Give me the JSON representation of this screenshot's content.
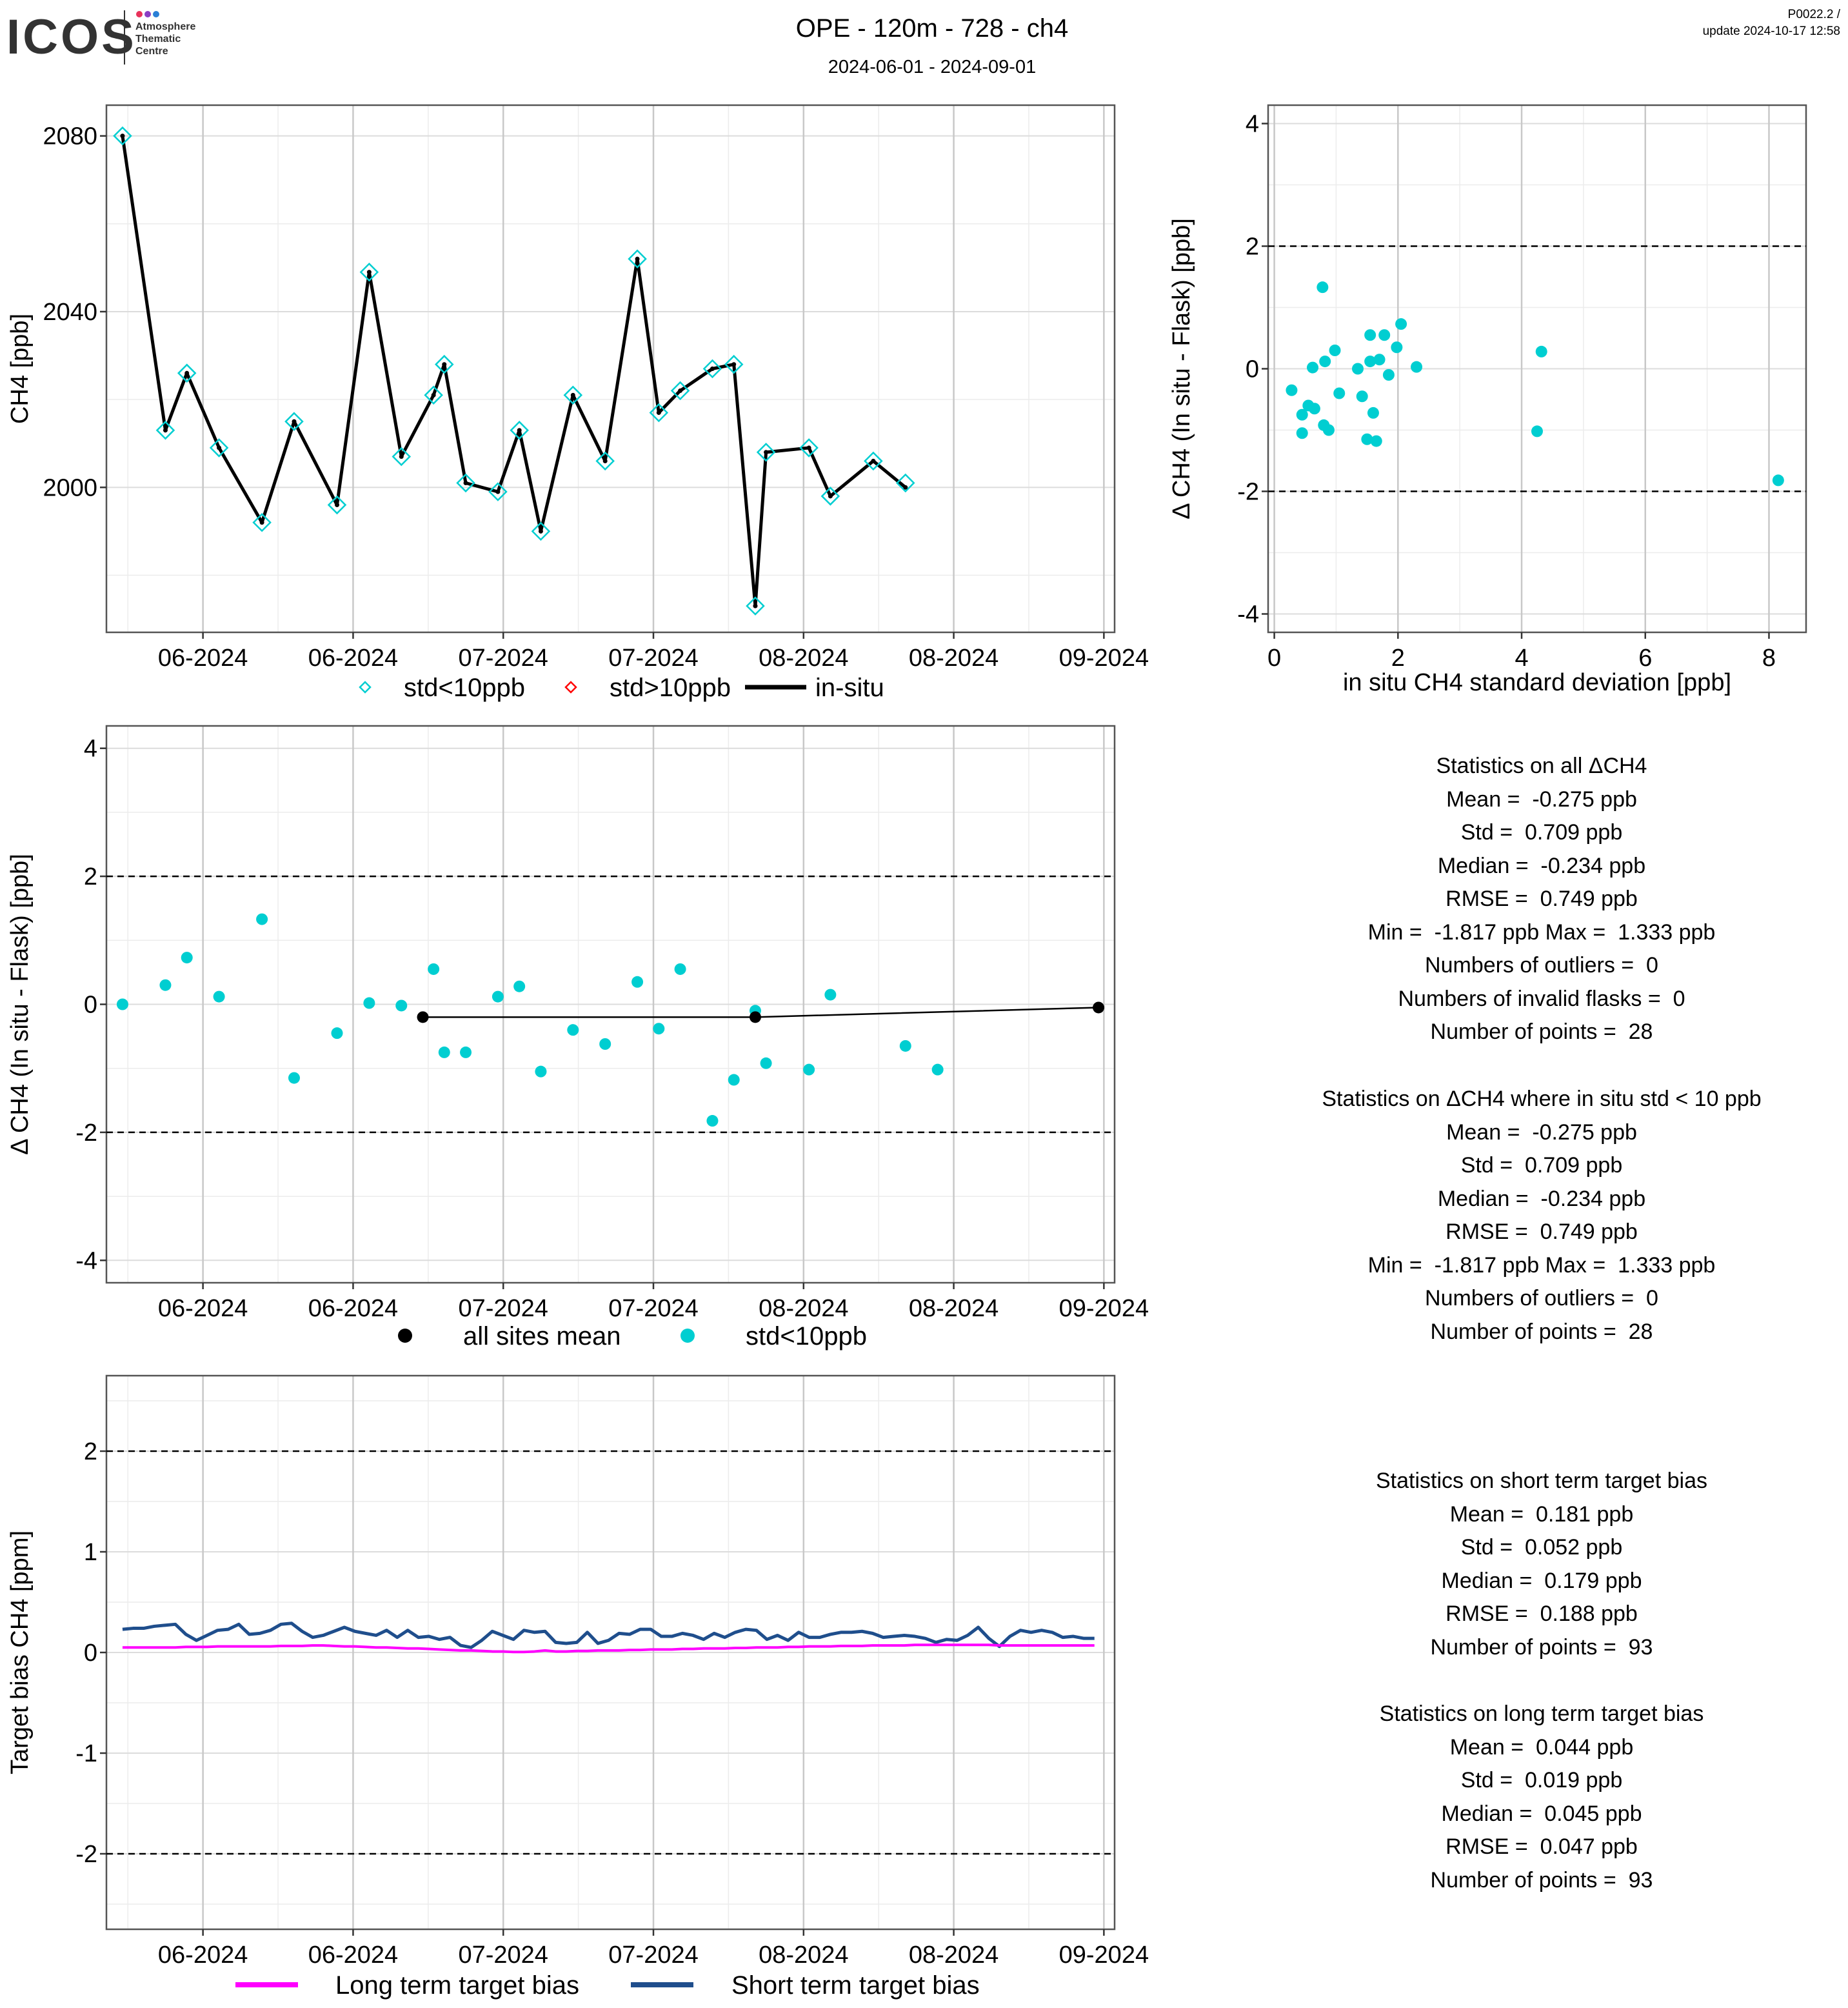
{
  "header": {
    "logo_text": "ICOS",
    "logo_sub": [
      "Atmosphere",
      "Thematic",
      "Centre"
    ],
    "title": "OPE - 120m - 728 - ch4",
    "subtitle": "2024-06-01 - 2024-09-01",
    "version": "P0022.2 /",
    "update": "update  2024-10-17 12:58"
  },
  "colors": {
    "flask": "#00CED1",
    "flask_outlier": "#FF0000",
    "insitu": "#000000",
    "all_sites_mean": "#000000",
    "long_term": "#FF00FF",
    "short_term": "#1F4E8C",
    "ref_line": "#000000"
  },
  "chart_data": [
    {
      "id": "ch4_timeseries",
      "type": "line",
      "ylabel": "CH4 [ppb]",
      "x_tick_labels": [
        "06-2024",
        "06-2024",
        "07-2024",
        "07-2024",
        "08-2024",
        "08-2024",
        "09-2024"
      ],
      "x_tick_days": [
        0,
        14,
        28,
        42,
        56,
        70,
        84
      ],
      "xlim": [
        -9,
        85
      ],
      "ylim": [
        1967,
        2087
      ],
      "y_ticks": [
        2000,
        2040,
        2080
      ],
      "legend": [
        "std<10ppb",
        "std>10ppb",
        "in-situ"
      ],
      "series": [
        {
          "name": "in-situ",
          "points": [
            [
              -7.5,
              2080
            ],
            [
              -3.5,
              2013
            ],
            [
              -1.5,
              2026
            ],
            [
              1.5,
              2009
            ],
            [
              5.5,
              1992
            ],
            [
              8.5,
              2015
            ],
            [
              12.5,
              1996
            ],
            [
              15.5,
              2049
            ],
            [
              18.5,
              2007
            ],
            [
              21.5,
              2021
            ],
            [
              22.5,
              2028
            ],
            [
              24.5,
              2001
            ],
            [
              27.5,
              1999
            ],
            [
              29.5,
              2013
            ],
            [
              31.5,
              1990
            ],
            [
              34.5,
              2021
            ],
            [
              37.5,
              2006
            ],
            [
              40.5,
              2052
            ],
            [
              42.5,
              2017
            ],
            [
              44.5,
              2022
            ],
            [
              47.5,
              2027
            ],
            [
              49.5,
              2028
            ],
            [
              51.5,
              1973
            ],
            [
              52.5,
              2008
            ],
            [
              56.5,
              2009
            ],
            [
              58.5,
              1998
            ],
            [
              62.5,
              2006
            ],
            [
              65.5,
              2000
            ]
          ]
        },
        {
          "name": "std<10ppb",
          "points": [
            [
              -7.5,
              2080
            ],
            [
              -3.5,
              2013
            ],
            [
              -1.5,
              2026
            ],
            [
              1.5,
              2009
            ],
            [
              5.5,
              1992
            ],
            [
              8.5,
              2015
            ],
            [
              12.5,
              1996
            ],
            [
              15.5,
              2049
            ],
            [
              18.5,
              2007
            ],
            [
              21.5,
              2021
            ],
            [
              22.5,
              2028
            ],
            [
              24.5,
              2001
            ],
            [
              27.5,
              1999
            ],
            [
              29.5,
              2013
            ],
            [
              31.5,
              1990
            ],
            [
              34.5,
              2021
            ],
            [
              37.5,
              2006
            ],
            [
              40.5,
              2052
            ],
            [
              42.5,
              2017
            ],
            [
              44.5,
              2022
            ],
            [
              47.5,
              2027
            ],
            [
              49.5,
              2028
            ],
            [
              51.5,
              1973
            ],
            [
              52.5,
              2008
            ],
            [
              56.5,
              2009
            ],
            [
              58.5,
              1998
            ],
            [
              62.5,
              2006
            ],
            [
              65.5,
              2001
            ]
          ]
        }
      ]
    },
    {
      "id": "delta_vs_std",
      "type": "scatter",
      "xlabel": "in situ CH4 standard deviation [ppb]",
      "ylabel": "Δ CH4 (In situ - Flask) [ppb]",
      "xlim": [
        -0.1,
        8.6
      ],
      "ylim": [
        -4.3,
        4.3
      ],
      "x_ticks": [
        0,
        2,
        4,
        6,
        8
      ],
      "y_ticks": [
        -4,
        -2,
        0,
        2,
        4
      ],
      "ref_lines": [
        2,
        -2
      ],
      "points": [
        [
          0.28,
          -0.35
        ],
        [
          0.45,
          -0.75
        ],
        [
          0.45,
          -1.05
        ],
        [
          0.55,
          -0.6
        ],
        [
          0.62,
          0.02
        ],
        [
          0.65,
          -0.65
        ],
        [
          0.78,
          1.33
        ],
        [
          0.8,
          -0.92
        ],
        [
          0.82,
          0.12
        ],
        [
          0.88,
          -1.0
        ],
        [
          0.98,
          0.3
        ],
        [
          1.05,
          -0.4
        ],
        [
          1.35,
          0.0
        ],
        [
          1.42,
          -0.45
        ],
        [
          1.5,
          -1.15
        ],
        [
          1.55,
          0.55
        ],
        [
          1.55,
          0.12
        ],
        [
          1.6,
          -0.72
        ],
        [
          1.65,
          -1.18
        ],
        [
          1.7,
          0.15
        ],
        [
          1.78,
          0.55
        ],
        [
          1.85,
          -0.1
        ],
        [
          1.98,
          0.35
        ],
        [
          2.05,
          0.73
        ],
        [
          2.3,
          0.03
        ],
        [
          4.25,
          -1.02
        ],
        [
          4.32,
          0.28
        ],
        [
          8.15,
          -1.82
        ]
      ]
    },
    {
      "id": "delta_timeseries",
      "type": "scatter",
      "ylabel": "Δ CH4 (In situ - Flask) [ppb]",
      "x_tick_labels": [
        "06-2024",
        "06-2024",
        "07-2024",
        "07-2024",
        "08-2024",
        "08-2024",
        "09-2024"
      ],
      "x_tick_days": [
        0,
        14,
        28,
        42,
        56,
        70,
        84
      ],
      "xlim": [
        -9,
        85
      ],
      "ylim": [
        -4.35,
        4.35
      ],
      "y_ticks": [
        -4,
        -2,
        0,
        2,
        4
      ],
      "ref_lines": [
        2,
        -2
      ],
      "legend": [
        "all sites mean",
        "std<10ppb"
      ],
      "series": [
        {
          "name": "std<10ppb",
          "points": [
            [
              -7.5,
              0.0
            ],
            [
              -3.5,
              0.3
            ],
            [
              -1.5,
              0.73
            ],
            [
              1.5,
              0.12
            ],
            [
              5.5,
              1.33
            ],
            [
              8.5,
              -1.15
            ],
            [
              12.5,
              -0.45
            ],
            [
              15.5,
              0.02
            ],
            [
              18.5,
              -0.02
            ],
            [
              21.5,
              0.55
            ],
            [
              22.5,
              -0.75
            ],
            [
              24.5,
              -0.75
            ],
            [
              27.5,
              0.12
            ],
            [
              29.5,
              0.28
            ],
            [
              31.5,
              -1.05
            ],
            [
              34.5,
              -0.4
            ],
            [
              37.5,
              -0.62
            ],
            [
              40.5,
              0.35
            ],
            [
              42.5,
              -0.38
            ],
            [
              44.5,
              0.55
            ],
            [
              47.5,
              -1.82
            ],
            [
              49.5,
              -1.18
            ],
            [
              51.5,
              -0.1
            ],
            [
              52.5,
              -0.92
            ],
            [
              56.5,
              -1.02
            ],
            [
              58.5,
              0.15
            ],
            [
              65.5,
              -0.65
            ],
            [
              68.5,
              -1.02
            ]
          ]
        },
        {
          "name": "all sites mean",
          "points": [
            [
              20.5,
              -0.2
            ],
            [
              51.5,
              -0.2
            ],
            [
              83.5,
              -0.05
            ]
          ]
        }
      ]
    },
    {
      "id": "target_bias",
      "type": "line",
      "ylabel": "Target bias CH4 [ppm]",
      "x_tick_labels": [
        "06-2024",
        "06-2024",
        "07-2024",
        "07-2024",
        "08-2024",
        "08-2024",
        "09-2024"
      ],
      "x_tick_days": [
        0,
        14,
        28,
        42,
        56,
        70,
        84
      ],
      "xlim": [
        -9,
        85
      ],
      "ylim": [
        -2.75,
        2.75
      ],
      "y_ticks": [
        -2,
        -1,
        0,
        1,
        2
      ],
      "ref_lines": [
        2,
        -2
      ],
      "legend": [
        "Long term target bias",
        "Short term target bias"
      ],
      "series": [
        {
          "name": "Short term target bias",
          "values_start_day": -7.5,
          "step_days": 0.985,
          "values": [
            0.23,
            0.24,
            0.24,
            0.26,
            0.27,
            0.28,
            0.18,
            0.12,
            0.17,
            0.22,
            0.23,
            0.28,
            0.18,
            0.19,
            0.22,
            0.28,
            0.29,
            0.21,
            0.15,
            0.17,
            0.21,
            0.25,
            0.21,
            0.19,
            0.17,
            0.22,
            0.15,
            0.22,
            0.15,
            0.16,
            0.13,
            0.15,
            0.07,
            0.05,
            0.12,
            0.21,
            0.17,
            0.13,
            0.22,
            0.2,
            0.21,
            0.1,
            0.09,
            0.1,
            0.2,
            0.09,
            0.12,
            0.19,
            0.18,
            0.23,
            0.23,
            0.16,
            0.16,
            0.19,
            0.17,
            0.13,
            0.19,
            0.15,
            0.2,
            0.23,
            0.22,
            0.13,
            0.17,
            0.12,
            0.2,
            0.15,
            0.15,
            0.18,
            0.2,
            0.2,
            0.21,
            0.19,
            0.15,
            0.16,
            0.17,
            0.16,
            0.14,
            0.1,
            0.13,
            0.12,
            0.17,
            0.25,
            0.14,
            0.06,
            0.16,
            0.22,
            0.2,
            0.22,
            0.2,
            0.15,
            0.16,
            0.14,
            0.14
          ]
        },
        {
          "name": "Long term target bias",
          "values_start_day": -7.5,
          "step_days": 0.985,
          "values": [
            0.05,
            0.05,
            0.05,
            0.05,
            0.05,
            0.05,
            0.055,
            0.055,
            0.055,
            0.06,
            0.06,
            0.06,
            0.06,
            0.06,
            0.06,
            0.065,
            0.065,
            0.065,
            0.07,
            0.07,
            0.065,
            0.06,
            0.06,
            0.055,
            0.05,
            0.05,
            0.045,
            0.04,
            0.04,
            0.035,
            0.03,
            0.025,
            0.02,
            0.02,
            0.015,
            0.01,
            0.01,
            0.005,
            0.005,
            0.01,
            0.02,
            0.01,
            0.01,
            0.015,
            0.015,
            0.02,
            0.02,
            0.02,
            0.025,
            0.025,
            0.03,
            0.03,
            0.03,
            0.035,
            0.035,
            0.04,
            0.04,
            0.04,
            0.045,
            0.045,
            0.05,
            0.05,
            0.05,
            0.055,
            0.055,
            0.06,
            0.06,
            0.06,
            0.065,
            0.065,
            0.065,
            0.07,
            0.07,
            0.07,
            0.07,
            0.075,
            0.075,
            0.075,
            0.075,
            0.075,
            0.075,
            0.075,
            0.075,
            0.07,
            0.07,
            0.07,
            0.07,
            0.07,
            0.07,
            0.07,
            0.07,
            0.07,
            0.07
          ]
        }
      ]
    }
  ],
  "stats": {
    "all_delta": [
      "Statistics on all ΔCH4",
      "Mean =  -0.275 ppb",
      "Std =  0.709 ppb",
      "Median =  -0.234 ppb",
      "RMSE =  0.749 ppb",
      "Min =  -1.817 ppb Max =  1.333 ppb",
      "Numbers of outliers =  0",
      "Numbers of invalid flasks =  0",
      "Number of points =  28"
    ],
    "filtered_delta": [
      "Statistics on ΔCH4 where in situ std < 10 ppb",
      "Mean =  -0.275 ppb",
      "Std =  0.709 ppb",
      "Median =  -0.234 ppb",
      "RMSE =  0.749 ppb",
      "Min =  -1.817 ppb Max =  1.333 ppb",
      "Numbers of outliers =  0",
      "Number of points =  28"
    ],
    "short_term": [
      "Statistics on short term target bias",
      "Mean =  0.181 ppb",
      "Std =  0.052 ppb",
      "Median =  0.179 ppb",
      "RMSE =  0.188 ppb",
      "Number of points =  93"
    ],
    "long_term": [
      "Statistics on long term target bias",
      "Mean =  0.044 ppb",
      "Std =  0.019 ppb",
      "Median =  0.045 ppb",
      "RMSE =  0.047 ppb",
      "Number of points =  93"
    ]
  }
}
